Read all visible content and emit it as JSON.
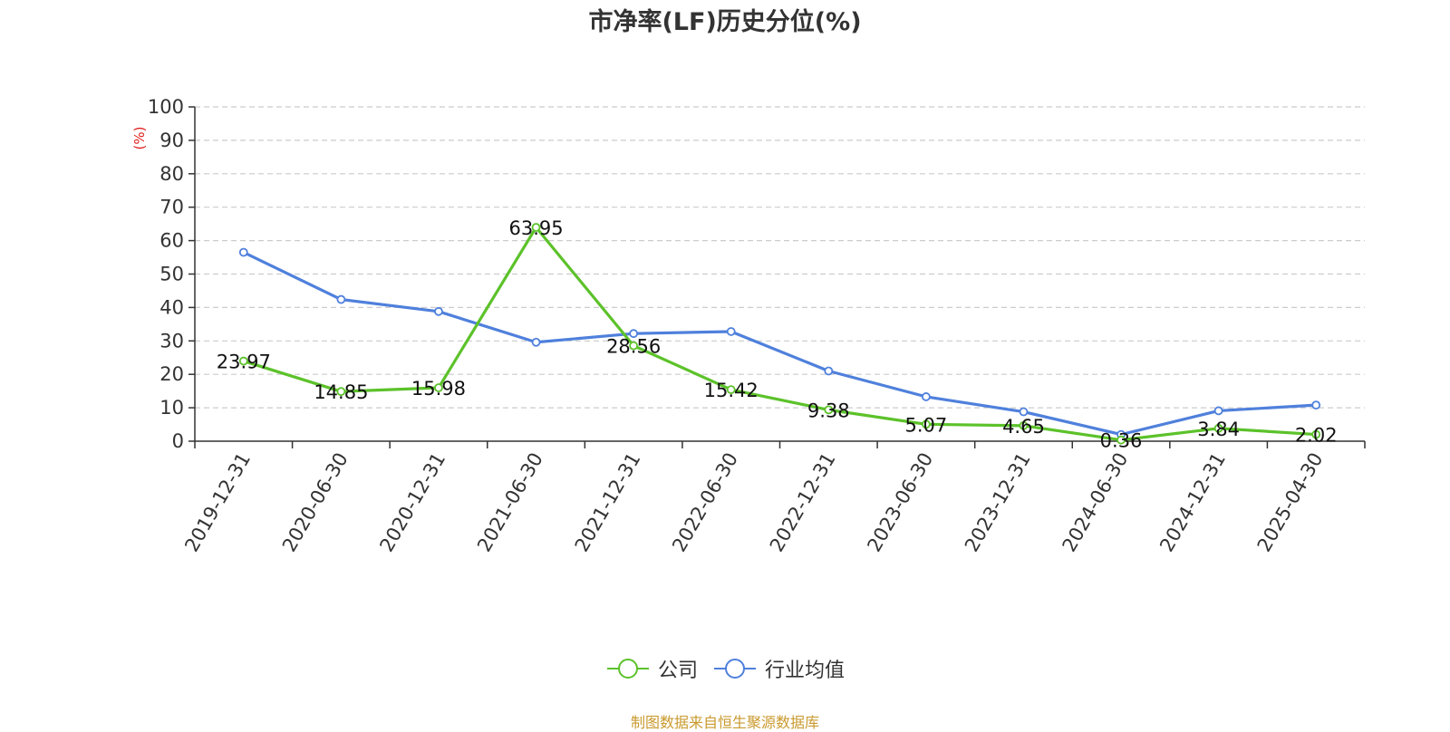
{
  "title": "市净率(LF)历史分位(%)",
  "source": "制图数据来自恒生聚源数据库",
  "colors": {
    "company": "#5cc22a",
    "industry": "#4f80dc",
    "ylabel": "#e0201b",
    "grid": "#cccccc",
    "axis": "#333333",
    "text": "#333333"
  },
  "chart_data": {
    "type": "line",
    "title": "市净率(LF)历史分位(%)",
    "ylabel": "(%)",
    "xlabel": "",
    "ylim": [
      0,
      100
    ],
    "yticks": [
      0,
      10,
      20,
      30,
      40,
      50,
      60,
      70,
      80,
      90,
      100
    ],
    "grid": true,
    "legend_position": "bottom-center",
    "categories": [
      "2019-12-31",
      "2020-06-30",
      "2020-12-31",
      "2021-06-30",
      "2021-12-31",
      "2022-06-30",
      "2022-12-31",
      "2023-06-30",
      "2023-12-31",
      "2024-06-30",
      "2024-12-31",
      "2025-04-30"
    ],
    "series": [
      {
        "name": "公司",
        "values": [
          23.97,
          14.85,
          15.98,
          63.95,
          28.56,
          15.42,
          9.38,
          5.07,
          4.65,
          0.36,
          3.84,
          2.02
        ],
        "labels": [
          "23.97",
          "14.85",
          "15.98",
          "63.95",
          "28.56",
          "15.42",
          "9.38",
          "5.07",
          "4.65",
          "0.36",
          "3.84",
          "2.02"
        ]
      },
      {
        "name": "行业均值",
        "values": [
          56.5,
          42.4,
          38.8,
          29.6,
          32.2,
          32.8,
          21.0,
          13.3,
          8.8,
          2.0,
          9.1,
          10.8
        ]
      }
    ]
  },
  "legend": {
    "company_label": "公司",
    "industry_label": "行业均值"
  }
}
